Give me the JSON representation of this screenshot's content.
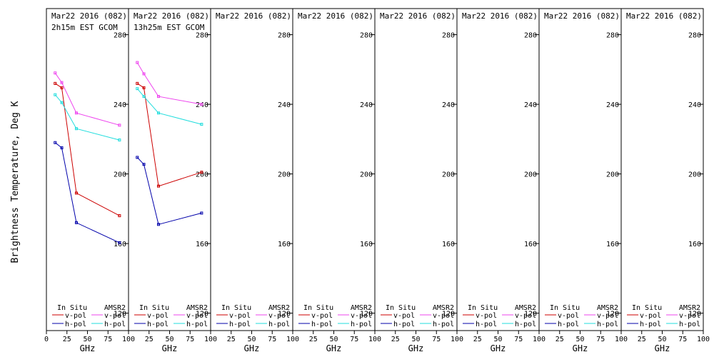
{
  "chart_data": {
    "type": "line",
    "ylabel": "Brightness Temperature, Deg K",
    "xlabel": "GHz",
    "xlim": [
      0,
      100
    ],
    "ylim": [
      110,
      295
    ],
    "xticks": [
      0,
      25,
      50,
      75,
      100
    ],
    "xtick_labels": [
      "0",
      "25",
      "50",
      "75",
      "100"
    ],
    "yticks": [
      120,
      160,
      200,
      240,
      280
    ],
    "grid": false,
    "legend": {
      "placement": "bottom",
      "insitu_label": "In Situ",
      "amsr2_label": "AMSR2",
      "vpol_label": "v-pol",
      "hpol_label": "h-pol"
    },
    "colors": {
      "insitu_v": "#cc0000",
      "insitu_h": "#0000aa",
      "amsr2_v": "#ee44ee",
      "amsr2_h": "#22dddd"
    },
    "panels": [
      {
        "title": "Mar22 2016 (082)",
        "subtitle": "2h15m EST GCOM",
        "series": [
          {
            "key": "insitu_v",
            "x": [
              10.65,
              18.7,
              36.5,
              89
            ],
            "y": [
              252,
              249.5,
              189,
              176
            ]
          },
          {
            "key": "insitu_h",
            "x": [
              10.65,
              18.7,
              36.5,
              89
            ],
            "y": [
              218,
              215,
              172,
              160.5
            ]
          },
          {
            "key": "amsr2_v",
            "x": [
              10.65,
              18.7,
              36.5,
              89
            ],
            "y": [
              258,
              252.5,
              235,
              228
            ]
          },
          {
            "key": "amsr2_h",
            "x": [
              10.65,
              18.7,
              36.5,
              89
            ],
            "y": [
              245.5,
              241,
              226,
              219.5
            ]
          }
        ]
      },
      {
        "title": "Mar22 2016 (082)",
        "subtitle": "13h25m EST GCOM",
        "series": [
          {
            "key": "insitu_v",
            "x": [
              10.65,
              18.7,
              36.5,
              89
            ],
            "y": [
              252,
              249.5,
              193,
              201
            ]
          },
          {
            "key": "insitu_h",
            "x": [
              10.65,
              18.7,
              36.5,
              89
            ],
            "y": [
              209.5,
              205.5,
              171,
              177.5
            ]
          },
          {
            "key": "amsr2_v",
            "x": [
              10.65,
              18.7,
              36.5,
              89
            ],
            "y": [
              264,
              257.5,
              244.5,
              240
            ]
          },
          {
            "key": "amsr2_h",
            "x": [
              10.65,
              18.7,
              36.5,
              89
            ],
            "y": [
              249,
              244.5,
              235,
              228.5
            ]
          }
        ]
      },
      {
        "title": "Mar22 2016 (082)",
        "subtitle": "",
        "series": []
      },
      {
        "title": "Mar22 2016 (082)",
        "subtitle": "",
        "series": []
      },
      {
        "title": "Mar22 2016 (082)",
        "subtitle": "",
        "series": []
      },
      {
        "title": "Mar22 2016 (082)",
        "subtitle": "",
        "series": []
      },
      {
        "title": "Mar22 2016 (082)",
        "subtitle": "",
        "series": []
      },
      {
        "title": "Mar22 2016 (082)",
        "subtitle": "",
        "series": []
      }
    ]
  }
}
